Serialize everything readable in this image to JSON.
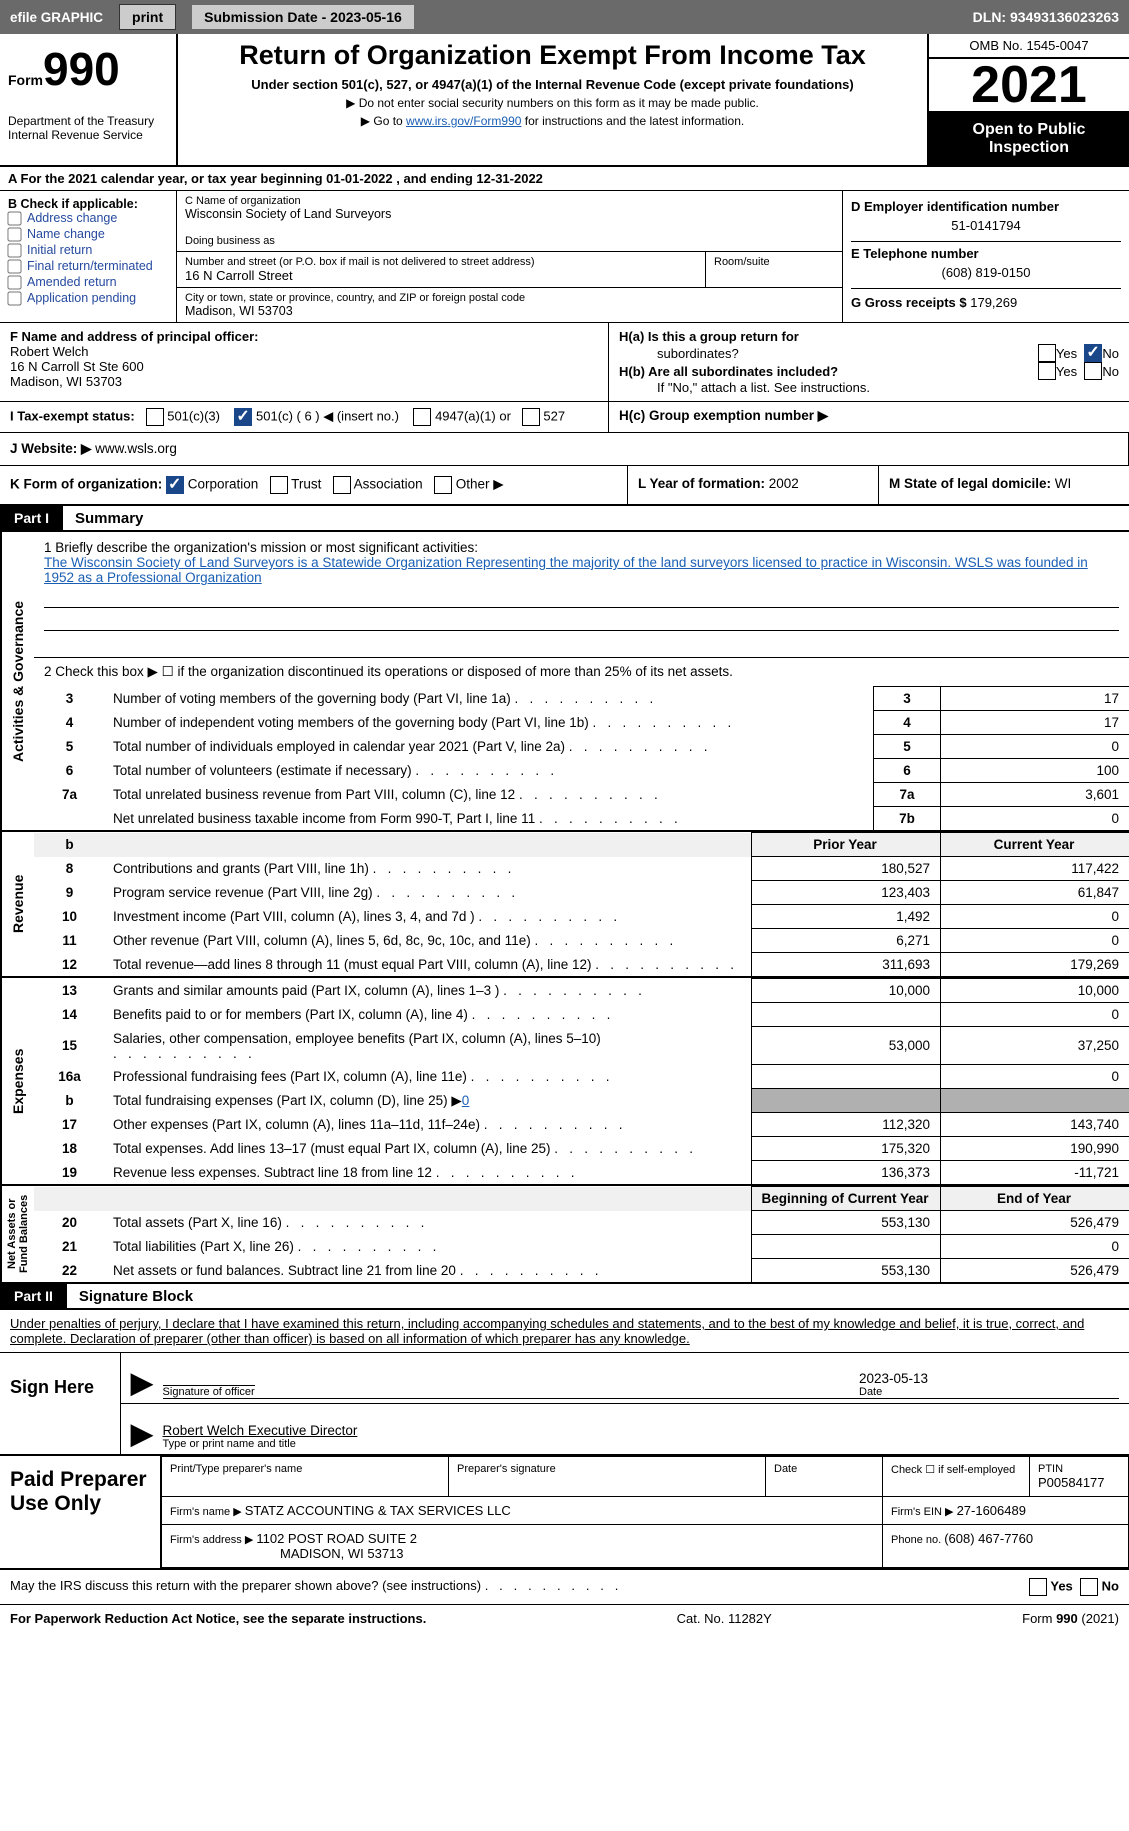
{
  "topbar": {
    "efile_graphic": "efile GRAPHIC",
    "print_btn": "print",
    "submission_date_label": "Submission Date - ",
    "submission_date": "2023-05-16",
    "dln_label": "DLN: ",
    "dln": "93493136023263"
  },
  "header": {
    "form_label": "Form",
    "form_no": "990",
    "dept": "Department of the Treasury\nInternal Revenue Service",
    "title": "Return of Organization Exempt From Income Tax",
    "subtitle": "Under section 501(c), 527, or 4947(a)(1) of the Internal Revenue Code (except private foundations)",
    "note1": "▶ Do not enter social security numbers on this form as it may be made public.",
    "note2_pre": "▶ Go to ",
    "note2_link": "www.irs.gov/Form990",
    "note2_post": " for instructions and the latest information.",
    "omb": "OMB No. 1545-0047",
    "year": "2021",
    "open": "Open to Public Inspection"
  },
  "row_a": "A For the 2021 calendar year, or tax year beginning 01-01-2022    , and ending 12-31-2022",
  "col_b": {
    "label": "B Check if applicable:",
    "items": [
      "Address change",
      "Name change",
      "Initial return",
      "Final return/terminated",
      "Amended return",
      "Application pending"
    ]
  },
  "col_c": {
    "name_label": "C Name of organization",
    "name": "Wisconsin Society of Land Surveyors",
    "dba_label": "Doing business as",
    "street_label": "Number and street (or P.O. box if mail is not delivered to street address)",
    "street": "16 N Carroll Street",
    "room_label": "Room/suite",
    "city_label": "City or town, state or province, country, and ZIP or foreign postal code",
    "city": "Madison, WI  53703"
  },
  "col_d": {
    "ein_label": "D Employer identification number",
    "ein": "51-0141794",
    "phone_label": "E Telephone number",
    "phone": "(608) 819-0150",
    "gross_label": "G Gross receipts $ ",
    "gross": "179,269"
  },
  "row_f": {
    "label": "F  Name and address of principal officer:",
    "name": "Robert Welch",
    "addr1": "16 N Carroll St Ste 600",
    "addr2": "Madison, WI  53703"
  },
  "row_h": {
    "ha_label": "H(a)  Is this a group return for",
    "ha_sub": "subordinates?",
    "hb_label": "H(b)  Are all subordinates included?",
    "hb_note": "If \"No,\" attach a list. See instructions.",
    "hc_label": "H(c)  Group exemption number ▶",
    "yes": "Yes",
    "no": "No"
  },
  "row_i": {
    "label": "I    Tax-exempt status:",
    "opt1": "501(c)(3)",
    "opt2_pre": "501(c) ( ",
    "opt2_num": "6",
    "opt2_post": " ) ◀ (insert no.)",
    "opt3": "4947(a)(1) or",
    "opt4": "527"
  },
  "row_j": {
    "label": "J    Website: ▶  ",
    "site": "www.wsls.org"
  },
  "row_k": {
    "label": "K Form of organization: ",
    "opt1": "Corporation",
    "opt2": "Trust",
    "opt3": "Association",
    "opt4": "Other ▶"
  },
  "row_l": {
    "label": "L Year of formation: ",
    "val": "2002"
  },
  "row_m": {
    "label": "M State of legal domicile: ",
    "val": "WI"
  },
  "part1": {
    "label": "Part I",
    "title": "Summary"
  },
  "side_labels": {
    "activities": "Activities & Governance",
    "revenue": "Revenue",
    "expenses": "Expenses",
    "net": "Net Assets or\nFund Balances"
  },
  "mission": {
    "line1_label": "1   Briefly describe the organization's mission or most significant activities:",
    "text": "The Wisconsin Society of Land Surveyors is a Statewide Organization Representing the majority of the land surveyors licensed to practice in Wisconsin. WSLS was founded in 1952 as a Professional Organization"
  },
  "line2": "2   Check this box ▶ ☐  if the organization discontinued its operations or disposed of more than 25% of its net assets.",
  "lines_act": [
    {
      "n": "3",
      "t": "Number of voting members of the governing body (Part VI, line 1a)",
      "box": "3",
      "v": "17"
    },
    {
      "n": "4",
      "t": "Number of independent voting members of the governing body (Part VI, line 1b)",
      "box": "4",
      "v": "17"
    },
    {
      "n": "5",
      "t": "Total number of individuals employed in calendar year 2021 (Part V, line 2a)",
      "box": "5",
      "v": "0"
    },
    {
      "n": "6",
      "t": "Total number of volunteers (estimate if necessary)",
      "box": "6",
      "v": "100"
    },
    {
      "n": "7a",
      "t": "Total unrelated business revenue from Part VIII, column (C), line 12",
      "box": "7a",
      "v": "3,601"
    },
    {
      "n": "",
      "t": "Net unrelated business taxable income from Form 990-T, Part I, line 11",
      "box": "7b",
      "v": "0"
    }
  ],
  "col_headers": {
    "prior": "Prior Year",
    "current": "Current Year",
    "beg": "Beginning of Current Year",
    "end": "End of Year"
  },
  "lines_rev": [
    {
      "n": "8",
      "t": "Contributions and grants (Part VIII, line 1h)",
      "p": "180,527",
      "c": "117,422"
    },
    {
      "n": "9",
      "t": "Program service revenue (Part VIII, line 2g)",
      "p": "123,403",
      "c": "61,847"
    },
    {
      "n": "10",
      "t": "Investment income (Part VIII, column (A), lines 3, 4, and 7d )",
      "p": "1,492",
      "c": "0"
    },
    {
      "n": "11",
      "t": "Other revenue (Part VIII, column (A), lines 5, 6d, 8c, 9c, 10c, and 11e)",
      "p": "6,271",
      "c": "0"
    },
    {
      "n": "12",
      "t": "Total revenue—add lines 8 through 11 (must equal Part VIII, column (A), line 12)",
      "p": "311,693",
      "c": "179,269"
    }
  ],
  "lines_exp": [
    {
      "n": "13",
      "t": "Grants and similar amounts paid (Part IX, column (A), lines 1–3 )",
      "p": "10,000",
      "c": "10,000"
    },
    {
      "n": "14",
      "t": "Benefits paid to or for members (Part IX, column (A), line 4)",
      "p": "",
      "c": "0"
    },
    {
      "n": "15",
      "t": "Salaries, other compensation, employee benefits (Part IX, column (A), lines 5–10)",
      "p": "53,000",
      "c": "37,250"
    },
    {
      "n": "16a",
      "t": "Professional fundraising fees (Part IX, column (A), line 11e)",
      "p": "",
      "c": "0"
    },
    {
      "n": "b",
      "t": "Total fundraising expenses (Part IX, column (D), line 25) ▶",
      "sub": "0",
      "gray": true
    },
    {
      "n": "17",
      "t": "Other expenses (Part IX, column (A), lines 11a–11d, 11f–24e)",
      "p": "112,320",
      "c": "143,740"
    },
    {
      "n": "18",
      "t": "Total expenses. Add lines 13–17 (must equal Part IX, column (A), line 25)",
      "p": "175,320",
      "c": "190,990"
    },
    {
      "n": "19",
      "t": "Revenue less expenses. Subtract line 18 from line 12",
      "p": "136,373",
      "c": "-11,721"
    }
  ],
  "lines_net": [
    {
      "n": "20",
      "t": "Total assets (Part X, line 16)",
      "p": "553,130",
      "c": "526,479"
    },
    {
      "n": "21",
      "t": "Total liabilities (Part X, line 26)",
      "p": "",
      "c": "0"
    },
    {
      "n": "22",
      "t": "Net assets or fund balances. Subtract line 21 from line 20",
      "p": "553,130",
      "c": "526,479"
    }
  ],
  "part2": {
    "label": "Part II",
    "title": "Signature Block"
  },
  "sig_text": "Under penalties of perjury, I declare that I have examined this return, including accompanying schedules and statements, and to the best of my knowledge and belief, it is true, correct, and complete. Declaration of preparer (other than officer) is based on all information of which preparer has any knowledge.",
  "sign_here": "Sign Here",
  "sig_officer_label": "Signature of officer",
  "sig_date": "2023-05-13",
  "sig_date_label": "Date",
  "sig_name": "Robert Welch  Executive Director",
  "sig_name_label": "Type or print name and title",
  "paid_prep": "Paid Preparer Use Only",
  "prep": {
    "name_label": "Print/Type preparer's name",
    "sig_label": "Preparer's signature",
    "date_label": "Date",
    "check_label": "Check ☐ if self-employed",
    "ptin_label": "PTIN",
    "ptin": "P00584177",
    "firm_name_label": "Firm's name    ▶ ",
    "firm_name": "STATZ ACCOUNTING & TAX SERVICES LLC",
    "firm_ein_label": "Firm's EIN ▶ ",
    "firm_ein": "27-1606489",
    "firm_addr_label": "Firm's address ▶ ",
    "firm_addr1": "1102 POST ROAD SUITE 2",
    "firm_addr2": "MADISON, WI  53713",
    "phone_label": "Phone no. ",
    "phone": "(608) 467-7760"
  },
  "discuss": "May the IRS discuss this return with the preparer shown above? (see instructions)",
  "footer": {
    "left": "For Paperwork Reduction Act Notice, see the separate instructions.",
    "mid": "Cat. No. 11282Y",
    "right": "Form 990 (2021)"
  },
  "colors": {
    "link": "#1a5fb4",
    "checked": "#19478a",
    "topbar": "#6a6a6a"
  }
}
